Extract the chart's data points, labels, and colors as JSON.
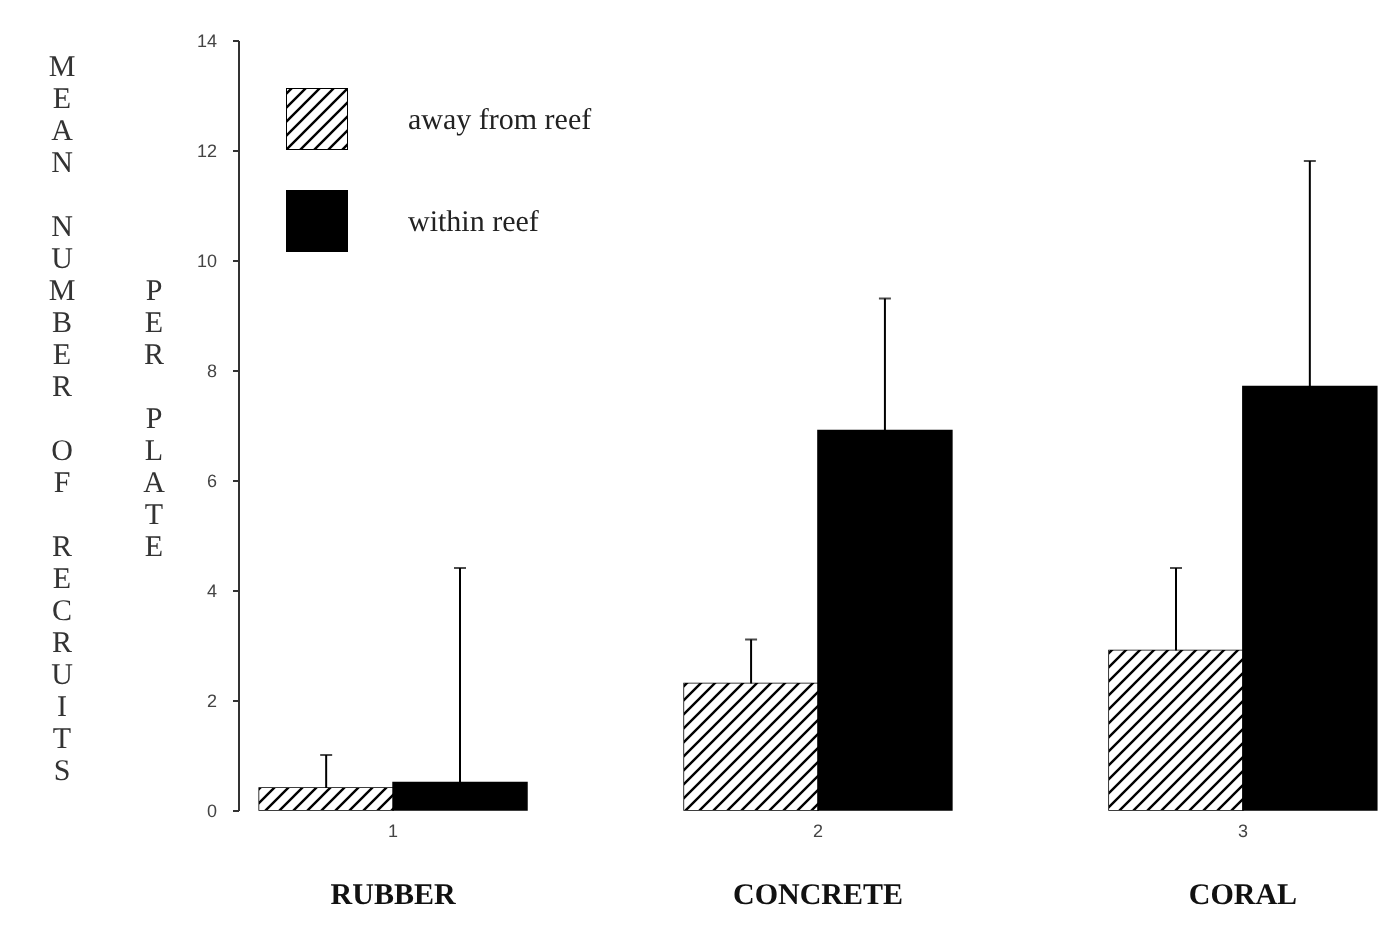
{
  "chart_data": {
    "type": "bar",
    "ylabel": "MEAN NUMBER OF RECRUITS PER PLATE",
    "categories": [
      "1",
      "2",
      "3"
    ],
    "series": [
      {
        "name": "away  from reef",
        "color": "#ffffff",
        "values": [
          0.4,
          2.3,
          2.9
        ],
        "errors": [
          [
            0.4,
            1.0
          ],
          [
            2.3,
            3.1
          ],
          [
            2.9,
            4.4
          ]
        ]
      },
      {
        "name": "within reef",
        "color": "#000000",
        "values": [
          0.5,
          6.9,
          7.7
        ],
        "errors": [
          [
            0.5,
            4.4
          ],
          [
            6.9,
            9.3
          ],
          [
            7.7,
            11.8
          ]
        ]
      }
    ],
    "annotations": [
      "RUBBER",
      "CONCRETE",
      "CORAL"
    ],
    "ylim": [
      0,
      14
    ],
    "yticks": [
      0,
      2,
      4,
      6,
      8,
      10,
      12,
      14
    ],
    "grid": false,
    "legend": "top left"
  }
}
